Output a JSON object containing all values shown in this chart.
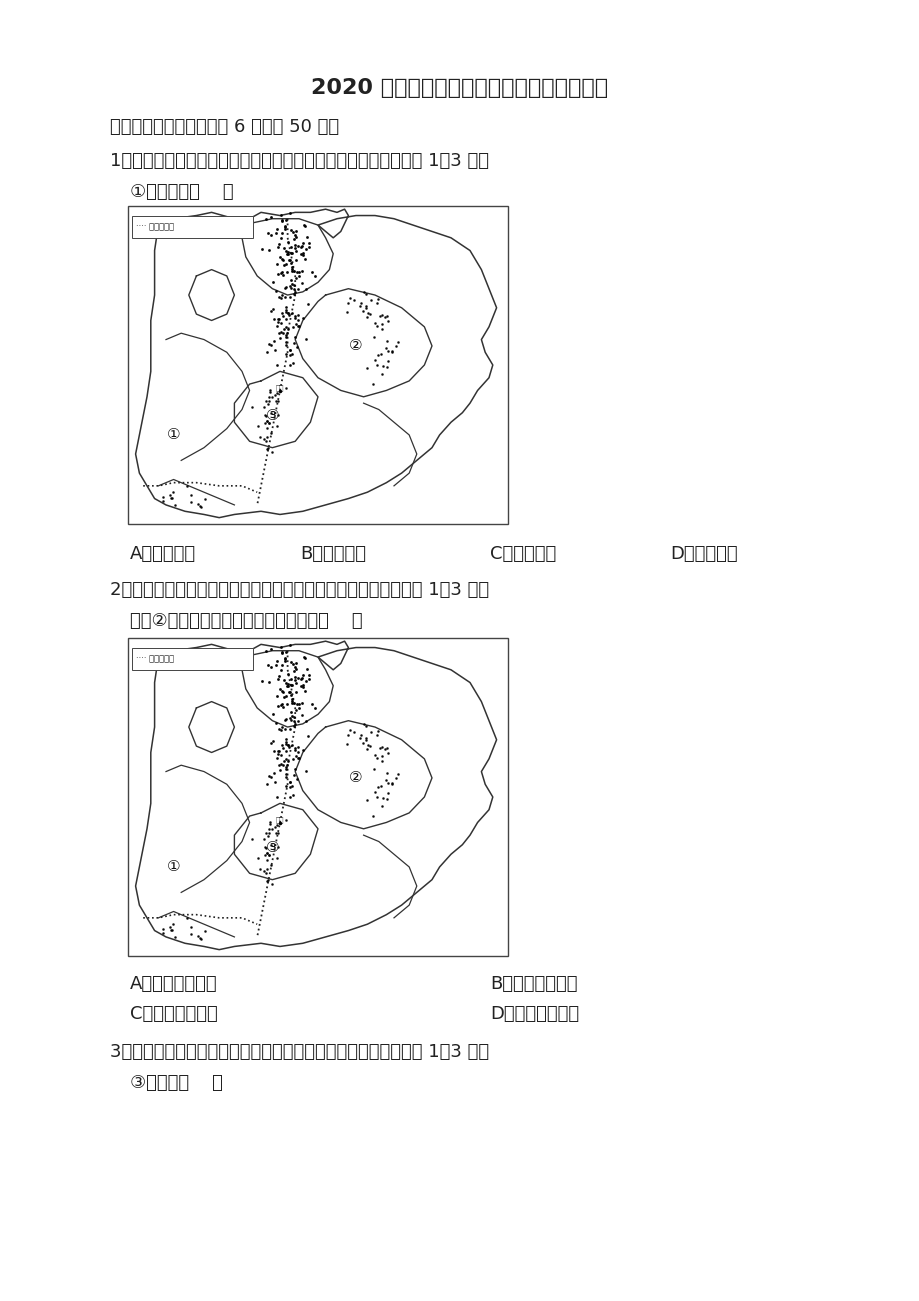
{
  "title": "2020 年河北省张家口市中考地理真题及答案",
  "title_suffix": "案",
  "section_header": "一、单项选择题（每小题 6 分，共 50 分）",
  "q1_stem": "1．北方地区是我们熟悉的家园，如图为北方地区略图。据此完成 1～3 题。",
  "q1_sub": "①地形区是（    ）",
  "q1_options": [
    "A．东北平原",
    "B．华北平原",
    "C．黄土高原",
    "D．四川盆地"
  ],
  "q2_stem": "2．北方地区是我们熟悉的家园，如图为北方地区略图。据此完成 1～3 题。",
  "q2_sub": "关于②地形区自然特征的描述正确的是（    ）",
  "q2_options_left": [
    "A．土地平坦肥沃",
    "C．树木四季常绿"
  ],
  "q2_options_right": [
    "B．地形崎岖不平",
    "D．河流无结冰期"
  ],
  "q3_stem": "3．北方地区是我们熟悉的家园，如图为北方地区略图。据此完成 1～3 题。",
  "q3_sub": "③地形区（    ）",
  "bg_color": "#ffffff",
  "map_legend": "···· 地形分界线"
}
